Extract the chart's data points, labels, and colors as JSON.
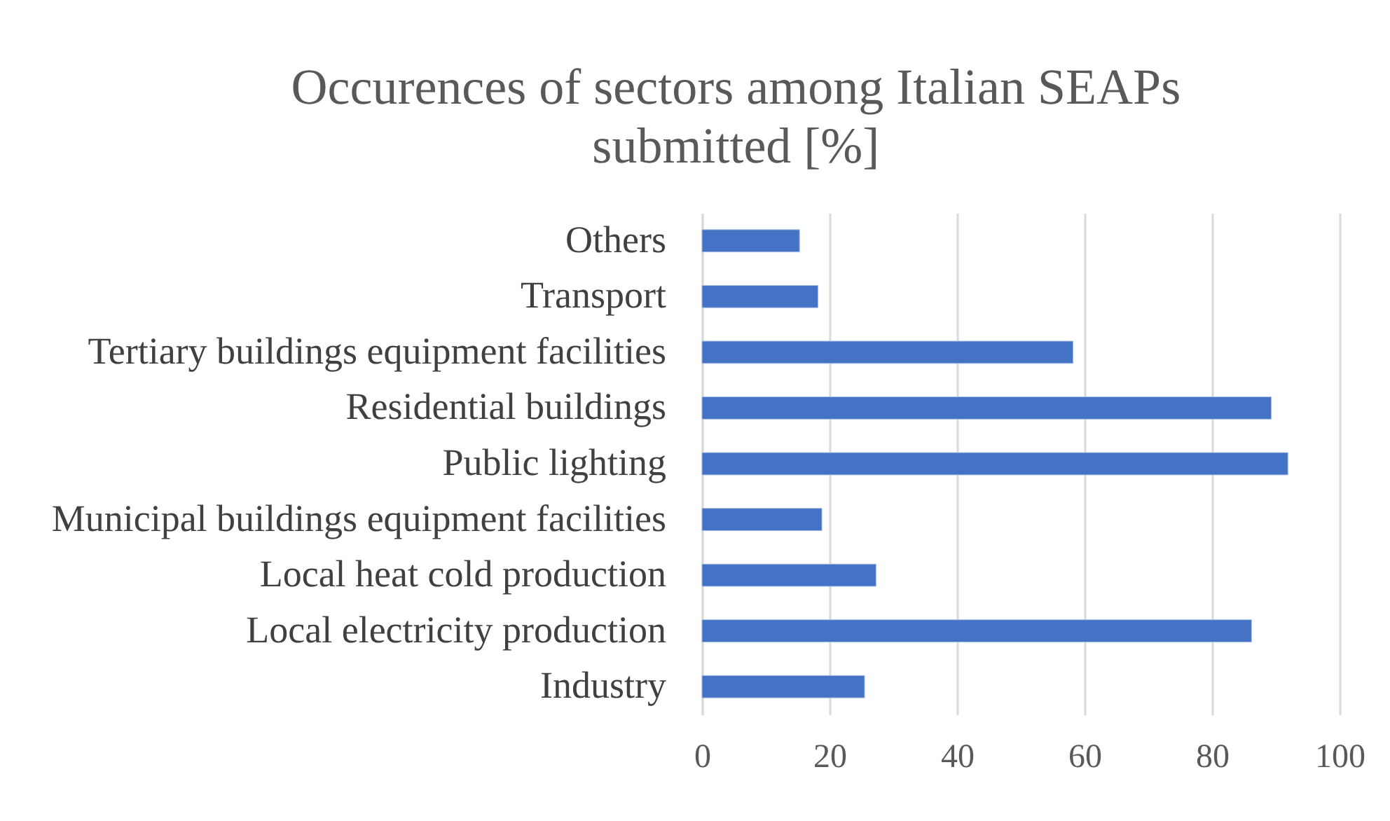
{
  "chart_data": {
    "type": "bar",
    "orientation": "horizontal",
    "title": "Occurences of sectors among Italian SEAPs submitted [%]",
    "categories": [
      "Others",
      "Transport",
      "Tertiary buildings equipment facilities",
      "Residential buildings",
      "Public lighting",
      "Municipal buildings equipment facilities",
      "Local heat cold production",
      "Local electricity production",
      "Industry"
    ],
    "values": [
      15.3,
      18.2,
      58.2,
      89.3,
      91.9,
      18.8,
      27.3,
      86.2,
      25.5
    ],
    "color": "#4472c4",
    "xlim": [
      0,
      100
    ],
    "xticks": [
      0,
      20,
      40,
      60,
      80,
      100
    ],
    "grid": "x"
  }
}
